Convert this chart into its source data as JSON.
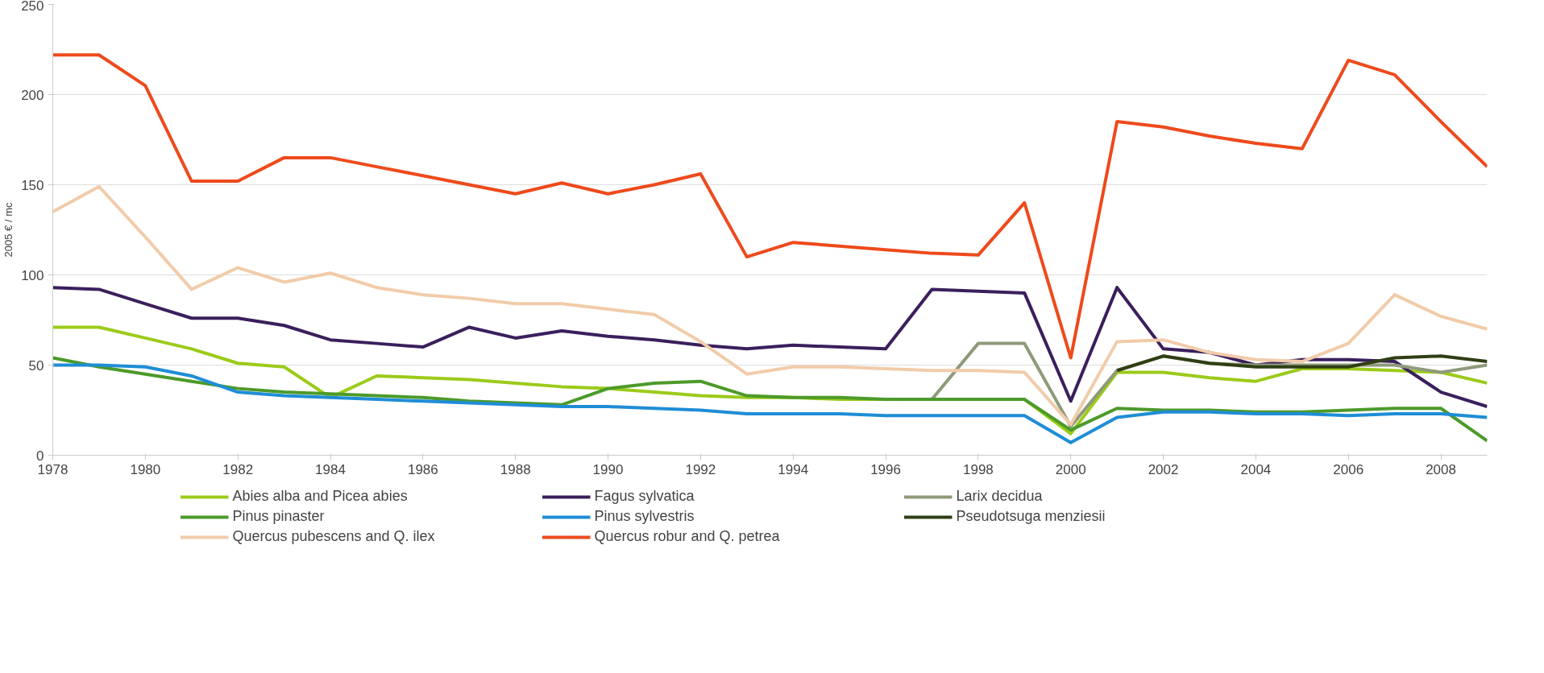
{
  "chart_data": {
    "type": "line",
    "ylabel": "2005 € / mc",
    "x": [
      1978,
      1979,
      1980,
      1981,
      1982,
      1983,
      1984,
      1985,
      1986,
      1987,
      1988,
      1989,
      1990,
      1991,
      1992,
      1993,
      1994,
      1995,
      1996,
      1997,
      1998,
      1999,
      2000,
      2001,
      2002,
      2003,
      2004,
      2005,
      2006,
      2007,
      2008,
      2009
    ],
    "xlim": [
      1978,
      2009
    ],
    "xticks": [
      1978,
      1980,
      1982,
      1984,
      1986,
      1988,
      1990,
      1992,
      1994,
      1996,
      1998,
      2000,
      2002,
      2004,
      2006,
      2008
    ],
    "ylim": [
      0,
      250
    ],
    "yticks": [
      0,
      50,
      100,
      150,
      200,
      250
    ],
    "grid": "y",
    "legend": "bottom",
    "marker": "none",
    "line_style": "solid",
    "series": [
      {
        "name": "Abies alba and Picea abies",
        "color": "#9bcb1a",
        "values": [
          71,
          71,
          65,
          59,
          51,
          49,
          32,
          44,
          43,
          42,
          40,
          38,
          37,
          35,
          33,
          32,
          32,
          31,
          31,
          31,
          31,
          31,
          12,
          46,
          46,
          43,
          41,
          48,
          48,
          47,
          46,
          40
        ]
      },
      {
        "name": "Fagus sylvatica",
        "color": "#3b1f5c",
        "values": [
          93,
          92,
          84,
          76,
          76,
          72,
          64,
          62,
          60,
          71,
          65,
          69,
          66,
          64,
          61,
          59,
          61,
          60,
          59,
          92,
          91,
          90,
          30,
          93,
          59,
          57,
          50,
          53,
          53,
          52,
          35,
          27
        ]
      },
      {
        "name": "Larix decidua",
        "color": "#8e9a7a",
        "values": [
          null,
          null,
          null,
          null,
          null,
          null,
          null,
          null,
          null,
          null,
          null,
          null,
          null,
          null,
          null,
          null,
          null,
          null,
          null,
          31,
          62,
          62,
          16,
          47,
          55,
          51,
          50,
          50,
          50,
          50,
          46,
          50
        ]
      },
      {
        "name": "Pinus pinaster",
        "color": "#4c9a2a",
        "values": [
          54,
          49,
          45,
          41,
          37,
          35,
          34,
          33,
          32,
          30,
          29,
          28,
          37,
          40,
          41,
          33,
          32,
          32,
          31,
          31,
          31,
          31,
          14,
          26,
          25,
          25,
          24,
          24,
          25,
          26,
          26,
          8
        ]
      },
      {
        "name": "Pinus sylvestris",
        "color": "#1f8dd6",
        "values": [
          50,
          50,
          49,
          44,
          35,
          33,
          32,
          31,
          30,
          29,
          28,
          27,
          27,
          26,
          25,
          23,
          23,
          23,
          22,
          22,
          22,
          22,
          7,
          21,
          24,
          24,
          23,
          23,
          22,
          23,
          23,
          21
        ]
      },
      {
        "name": "Pseudotsuga menziesii",
        "color": "#2f3f14",
        "values": [
          null,
          null,
          null,
          null,
          null,
          null,
          null,
          null,
          null,
          null,
          null,
          null,
          null,
          null,
          null,
          null,
          null,
          null,
          null,
          null,
          null,
          null,
          null,
          47,
          55,
          51,
          49,
          49,
          49,
          54,
          55,
          52
        ]
      },
      {
        "name": "Quercus pubescens and Q. ilex",
        "color": "#f1ccaa",
        "values": [
          135,
          149,
          121,
          92,
          104,
          96,
          101,
          93,
          89,
          87,
          84,
          84,
          81,
          78,
          63,
          45,
          49,
          49,
          48,
          47,
          47,
          46,
          17,
          63,
          64,
          57,
          53,
          52,
          62,
          89,
          77,
          70
        ]
      },
      {
        "name": "Quercus robur and Q. petrea",
        "color": "#ee4a1c",
        "values": [
          222,
          222,
          205,
          152,
          152,
          165,
          165,
          160,
          155,
          150,
          145,
          151,
          145,
          150,
          156,
          110,
          118,
          116,
          114,
          112,
          111,
          140,
          54,
          185,
          182,
          177,
          173,
          170,
          219,
          211,
          185,
          160
        ]
      }
    ]
  }
}
